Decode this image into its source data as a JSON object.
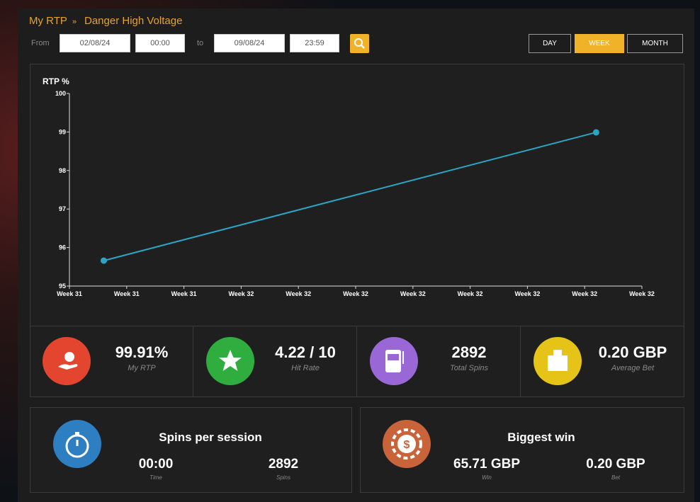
{
  "breadcrumb": {
    "root": "My RTP",
    "separator": "»",
    "current": "Danger High Voltage"
  },
  "filters": {
    "from_label": "From",
    "from_date": "02/08/24",
    "from_time": "00:00",
    "to_label": "to",
    "to_date": "09/08/24",
    "to_time": "23:59"
  },
  "periods": [
    {
      "label": "DAY",
      "active": false
    },
    {
      "label": "WEEK",
      "active": true
    },
    {
      "label": "MONTH",
      "active": false
    }
  ],
  "chart_data": {
    "type": "line",
    "y_label": "RTP %",
    "x": [
      0.6,
      9.2
    ],
    "series": [
      {
        "color": "#2aa6c4",
        "values": [
          95.66,
          98.99
        ]
      }
    ],
    "xlim": [
      0,
      10
    ],
    "xticks": [
      {
        "value": 0,
        "label": "Week 31"
      },
      {
        "value": 1,
        "label": "Week 31"
      },
      {
        "value": 2,
        "label": "Week 31"
      },
      {
        "value": 3,
        "label": "Week 32"
      },
      {
        "value": 4,
        "label": "Week 32"
      },
      {
        "value": 5,
        "label": "Week 32"
      },
      {
        "value": 6,
        "label": "Week 32"
      },
      {
        "value": 7,
        "label": "Week 32"
      },
      {
        "value": 8,
        "label": "Week 32"
      },
      {
        "value": 9,
        "label": "Week 32"
      },
      {
        "value": 10,
        "label": "Week 32"
      }
    ],
    "ylim": [
      95,
      100
    ],
    "yticks": [
      95,
      96,
      97,
      98,
      99,
      100
    ]
  },
  "stats": [
    {
      "value": "99.91%",
      "label": "My RTP"
    },
    {
      "value": "4.22 / 10",
      "label": "Hit Rate"
    },
    {
      "value": "2892",
      "label": "Total Spins"
    },
    {
      "value": "0.20 GBP",
      "label": "Average Bet"
    }
  ],
  "sessions": {
    "title": "Spins per session",
    "items": [
      {
        "value": "00:00",
        "label": "Time"
      },
      {
        "value": "2892",
        "label": "Spins"
      }
    ]
  },
  "biggest_win": {
    "title": "Biggest win",
    "items": [
      {
        "value": "65.71 GBP",
        "label": "Win"
      },
      {
        "value": "0.20 GBP",
        "label": "Bet"
      }
    ]
  }
}
